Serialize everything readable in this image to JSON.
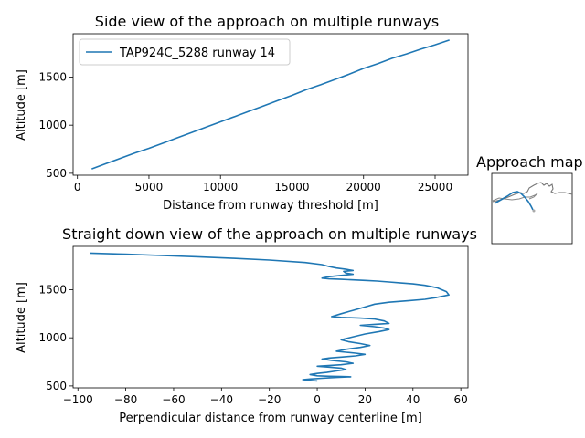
{
  "chart_data": [
    {
      "type": "line",
      "title": "Side view of the approach on multiple runways",
      "xlabel": "Distance from runway threshold [m]",
      "ylabel": "Altitude [m]",
      "xlim": [
        -300,
        27300
      ],
      "ylim": [
        480,
        1950
      ],
      "xticks": [
        0,
        5000,
        10000,
        15000,
        20000,
        25000
      ],
      "yticks": [
        500,
        1000,
        1500
      ],
      "legend": "upper left",
      "series": [
        {
          "name": "TAP924C_5288 runway 14",
          "color": "#1f77b4",
          "x": [
            1000,
            2000,
            3000,
            4000,
            5000,
            6000,
            7000,
            8000,
            9000,
            10000,
            11000,
            12000,
            13000,
            14000,
            15000,
            16000,
            17000,
            18000,
            19000,
            20000,
            21000,
            22000,
            23000,
            24000,
            25000,
            26000
          ],
          "y": [
            545,
            600,
            655,
            710,
            760,
            815,
            870,
            925,
            980,
            1035,
            1090,
            1145,
            1200,
            1255,
            1310,
            1370,
            1420,
            1475,
            1530,
            1590,
            1640,
            1695,
            1740,
            1790,
            1835,
            1885
          ]
        }
      ]
    },
    {
      "type": "line",
      "title": "Straight down view of the approach on multiple runways",
      "xlabel": "Perpendicular distance from runway centerline [m]",
      "ylabel": "Altitude [m]",
      "xlim": [
        -102,
        63
      ],
      "ylim": [
        480,
        1950
      ],
      "xticks": [
        -100,
        -80,
        -60,
        -40,
        -20,
        0,
        20,
        40,
        60
      ],
      "yticks": [
        500,
        1000,
        1500
      ],
      "series": [
        {
          "name": "",
          "color": "#1f77b4",
          "x": [
            -95,
            -80,
            -65,
            -50,
            -35,
            -20,
            -5,
            2,
            5,
            8,
            12,
            15,
            11,
            12,
            15,
            10,
            5,
            2,
            5,
            10,
            15,
            20,
            25,
            30,
            35,
            40,
            45,
            50,
            54,
            55,
            50,
            45,
            38,
            30,
            24,
            20,
            15,
            10,
            6,
            10,
            18,
            24,
            28,
            30,
            24,
            18,
            24,
            28,
            30,
            26,
            20,
            15,
            10,
            13,
            18,
            22,
            18,
            12,
            8,
            12,
            16,
            20,
            16,
            10,
            5,
            2,
            6,
            12,
            15,
            10,
            4,
            0,
            5,
            10,
            12,
            8,
            4,
            0,
            -3,
            0,
            5,
            10,
            14,
            8,
            2,
            -3,
            -6,
            -3,
            0
          ],
          "y": [
            1880,
            1868,
            1855,
            1842,
            1826,
            1808,
            1782,
            1760,
            1740,
            1725,
            1712,
            1700,
            1690,
            1672,
            1660,
            1648,
            1635,
            1620,
            1612,
            1608,
            1602,
            1596,
            1590,
            1580,
            1570,
            1560,
            1545,
            1520,
            1480,
            1445,
            1420,
            1400,
            1385,
            1370,
            1350,
            1320,
            1285,
            1250,
            1220,
            1212,
            1205,
            1195,
            1175,
            1150,
            1140,
            1130,
            1115,
            1100,
            1085,
            1065,
            1040,
            1010,
            980,
            960,
            940,
            920,
            900,
            880,
            860,
            850,
            840,
            828,
            812,
            800,
            790,
            780,
            765,
            750,
            735,
            720,
            710,
            705,
            695,
            685,
            670,
            655,
            640,
            630,
            618,
            605,
            600,
            598,
            595,
            588,
            580,
            572,
            565,
            558,
            552
          ]
        }
      ]
    },
    {
      "type": "map",
      "title": "Approach map"
    }
  ]
}
